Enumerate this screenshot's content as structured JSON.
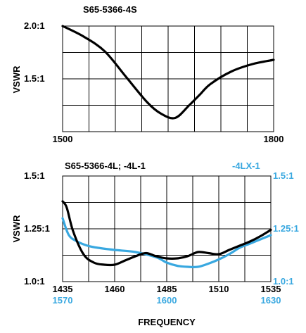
{
  "chart_data": [
    {
      "type": "line",
      "title": "S65-5366-4S",
      "ylabel": "VSWR",
      "xlabel": "",
      "xlim": [
        1500,
        1800
      ],
      "ylim": [
        1.0,
        2.0
      ],
      "x_tick_labels": [
        {
          "value": 1500,
          "label": "1500"
        },
        {
          "value": 1800,
          "label": "1800"
        }
      ],
      "y_tick_labels": [
        {
          "value": 2.0,
          "label": "2.0:1"
        },
        {
          "value": 1.5,
          "label": "1.5:1"
        }
      ],
      "grid": true,
      "series": [
        {
          "color": "#000000",
          "x": [
            1500,
            1530,
            1560,
            1590,
            1620,
            1640,
            1660,
            1680,
            1695,
            1710,
            1740,
            1770,
            1800
          ],
          "y": [
            2.0,
            1.9,
            1.76,
            1.52,
            1.28,
            1.17,
            1.13,
            1.25,
            1.35,
            1.45,
            1.57,
            1.64,
            1.68
          ]
        }
      ]
    },
    {
      "type": "line",
      "title": "S65-5366-4L; -4L-1",
      "ylabel": "VSWR",
      "xlabel": "FREQUENCY",
      "xlim": [
        1435,
        1535
      ],
      "ylim": [
        1.0,
        1.5
      ],
      "x_tick_labels": [
        {
          "value": 1435,
          "label": "1435"
        },
        {
          "value": 1460,
          "label": "1460"
        },
        {
          "value": 1485,
          "label": "1485"
        },
        {
          "value": 1510,
          "label": "1510"
        },
        {
          "value": 1535,
          "label": "1535"
        }
      ],
      "secondary_x_tick_labels": [
        {
          "value": 1435,
          "label": "1570"
        },
        {
          "value": 1485,
          "label": "1600"
        },
        {
          "value": 1535,
          "label": "1630"
        }
      ],
      "y_tick_labels": [
        {
          "value": 1.5,
          "label": "1.5:1"
        },
        {
          "value": 1.25,
          "label": "1.25:1"
        },
        {
          "value": 1.0,
          "label": "1.0:1"
        }
      ],
      "secondary_y_tick_labels": [
        {
          "value": 1.5,
          "label": "1.5:1"
        },
        {
          "value": 1.25,
          "label": "1.25:1"
        },
        {
          "value": 1.0,
          "label": "1.0:1"
        }
      ],
      "grid": true,
      "series": [
        {
          "color": "#000000",
          "x": [
            1435,
            1437,
            1440,
            1445,
            1450,
            1455,
            1460,
            1465,
            1470,
            1475,
            1480,
            1485,
            1490,
            1495,
            1500,
            1505,
            1510,
            1515,
            1520,
            1525,
            1530,
            1535
          ],
          "y": [
            1.38,
            1.35,
            1.24,
            1.13,
            1.09,
            1.08,
            1.08,
            1.1,
            1.12,
            1.135,
            1.12,
            1.11,
            1.11,
            1.12,
            1.14,
            1.135,
            1.13,
            1.15,
            1.17,
            1.19,
            1.215,
            1.245
          ]
        },
        {
          "name": "-4LX-1",
          "color": "#39a8e0",
          "x": [
            1435,
            1438,
            1442,
            1447,
            1452,
            1460,
            1470,
            1480,
            1485,
            1490,
            1495,
            1500,
            1505,
            1510,
            1515,
            1520,
            1525,
            1530,
            1535
          ],
          "y": [
            1.3,
            1.22,
            1.19,
            1.17,
            1.16,
            1.15,
            1.14,
            1.115,
            1.09,
            1.075,
            1.07,
            1.07,
            1.085,
            1.105,
            1.13,
            1.16,
            1.18,
            1.2,
            1.22
          ]
        }
      ]
    }
  ]
}
